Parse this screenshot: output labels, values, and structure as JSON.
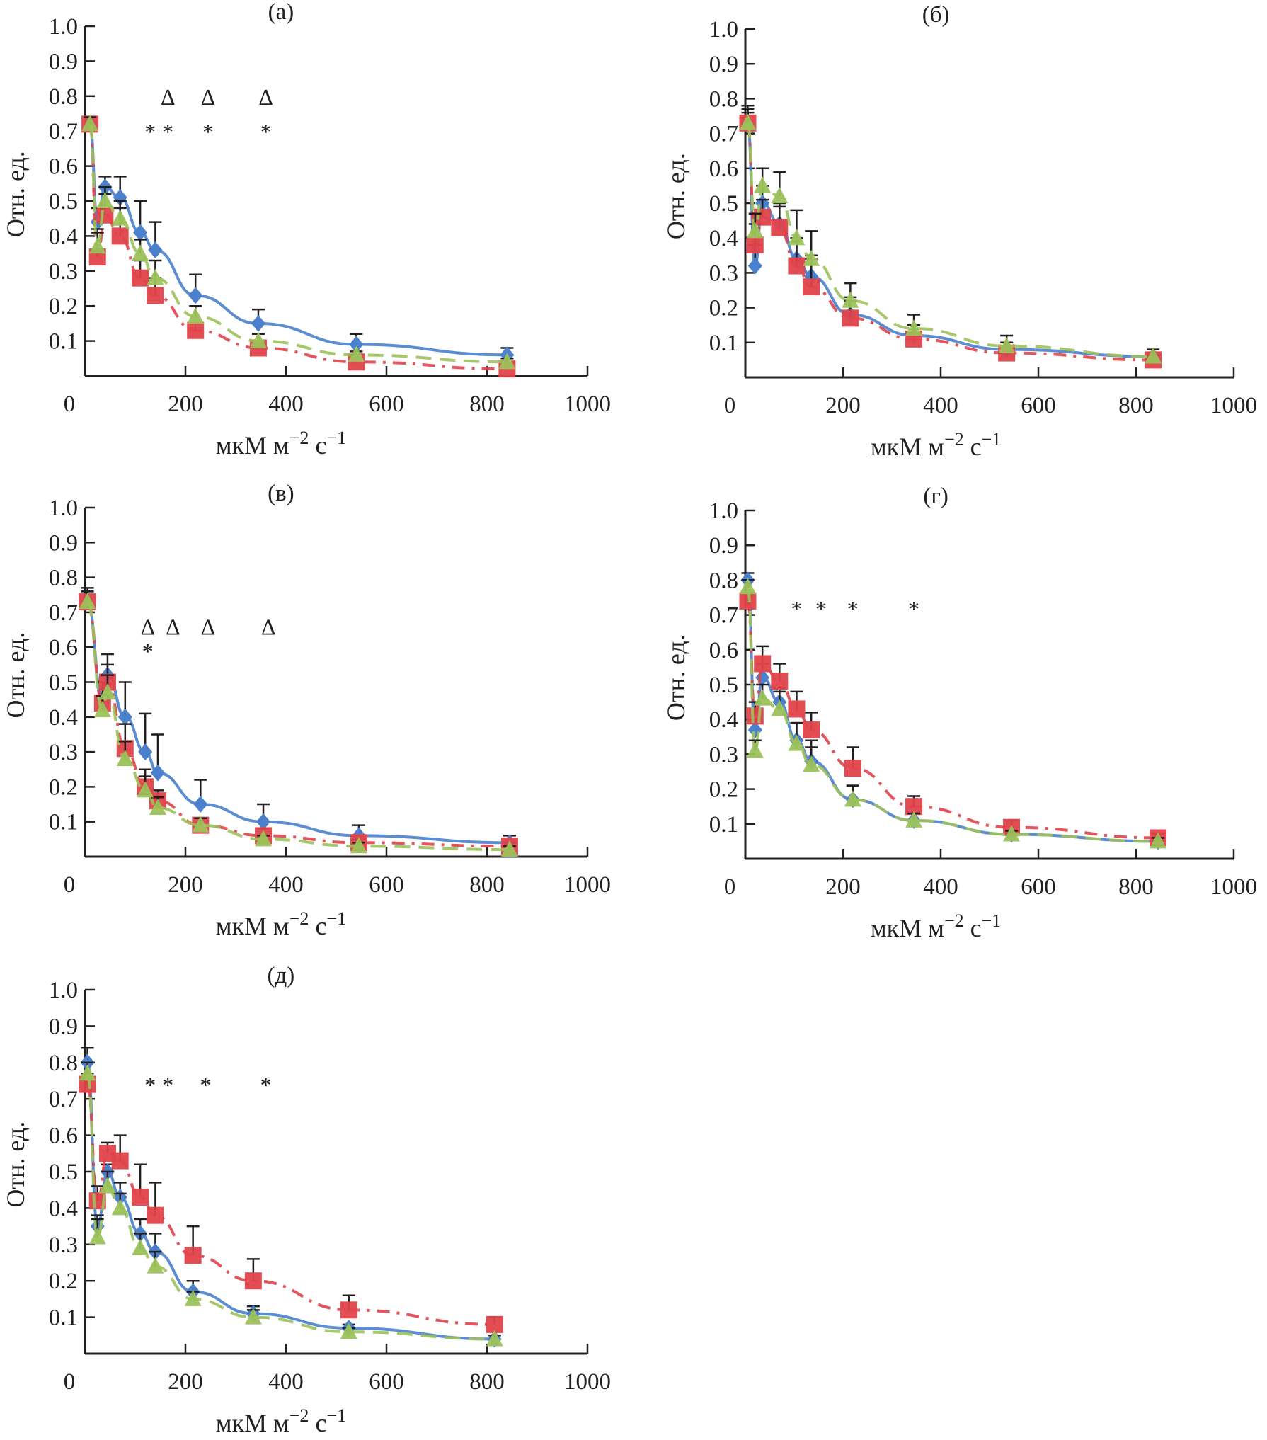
{
  "figure": {
    "colors": {
      "blue": "#4a80cc",
      "red": "#e0434b",
      "green": "#9cc25a",
      "axis": "#231f20"
    },
    "legend_note": "No legend shown"
  },
  "chart_data": [
    {
      "type": "line",
      "panel": "(а)",
      "title": "(а)",
      "xlabel": "мкМ м⁻² с⁻¹",
      "xlabel_parts": {
        "main": "мкМ м",
        "sup1": "−2",
        "mid": " с",
        "sup2": "−1"
      },
      "ylabel": "Отн. ед.",
      "xlim": [
        0,
        1000
      ],
      "ylim": [
        0,
        1.0
      ],
      "xticks": [
        "0",
        "200",
        "400",
        "600",
        "800",
        "1000"
      ],
      "yticks": [
        "0.1",
        "0.2",
        "0.3",
        "0.4",
        "0.5",
        "0.6",
        "0.7",
        "0.8",
        "0.9",
        "1.0"
      ],
      "x": [
        10,
        25,
        40,
        70,
        110,
        140,
        220,
        345,
        540,
        840
      ],
      "series": [
        {
          "name": "blue",
          "marker": "diamond",
          "line": "solid",
          "values": [
            0.72,
            0.44,
            0.54,
            0.51,
            0.41,
            0.36,
            0.23,
            0.15,
            0.09,
            0.06
          ],
          "err": [
            0.02,
            0.04,
            0.03,
            0.06,
            0.09,
            0.08,
            0.06,
            0.04,
            0.03,
            0.02
          ]
        },
        {
          "name": "red",
          "marker": "square",
          "line": "dashdot",
          "values": [
            0.72,
            0.34,
            0.46,
            0.4,
            0.28,
            0.23,
            0.13,
            0.08,
            0.04,
            0.02
          ],
          "err": [
            0.02,
            0.08,
            0.06,
            0.08,
            0.05,
            0.05,
            0.02,
            0.01,
            0.01,
            0.01
          ]
        },
        {
          "name": "green",
          "marker": "triangle",
          "line": "dashed",
          "values": [
            0.72,
            0.37,
            0.5,
            0.45,
            0.35,
            0.28,
            0.17,
            0.1,
            0.06,
            0.04
          ],
          "err": [
            0.02,
            0.04,
            0.04,
            0.05,
            0.04,
            0.05,
            0.03,
            0.02,
            0.01,
            0.01
          ]
        }
      ],
      "annotations": [
        {
          "text": "∆",
          "x": 165,
          "y": 0.8
        },
        {
          "text": "∆",
          "x": 245,
          "y": 0.8
        },
        {
          "text": "∆",
          "x": 360,
          "y": 0.8
        },
        {
          "text": "*",
          "x": 130,
          "y": 0.7
        },
        {
          "text": "*",
          "x": 165,
          "y": 0.7
        },
        {
          "text": "*",
          "x": 245,
          "y": 0.7
        },
        {
          "text": "*",
          "x": 360,
          "y": 0.7
        }
      ]
    },
    {
      "type": "line",
      "panel": "(б)",
      "title": "(б)",
      "xlabel": "мкМ м⁻² с⁻¹",
      "xlabel_parts": {
        "main": "мкМ м",
        "sup1": "−2",
        "mid": " с",
        "sup2": "−1"
      },
      "ylabel": "Отн. ед.",
      "xlim": [
        0,
        1000
      ],
      "ylim": [
        0,
        1.0
      ],
      "xticks": [
        "0",
        "200",
        "400",
        "600",
        "800",
        "1000"
      ],
      "yticks": [
        "0.1",
        "0.2",
        "0.3",
        "0.4",
        "0.5",
        "0.6",
        "0.7",
        "0.8",
        "0.9",
        "1.0"
      ],
      "x": [
        5,
        20,
        35,
        70,
        105,
        135,
        215,
        345,
        535,
        835
      ],
      "series": [
        {
          "name": "blue",
          "marker": "diamond",
          "line": "solid",
          "values": [
            0.73,
            0.32,
            0.5,
            0.44,
            0.34,
            0.29,
            0.18,
            0.12,
            0.08,
            0.06
          ],
          "err": [
            0.05,
            0.06,
            0.05,
            0.05,
            0.05,
            0.06,
            0.04,
            0.03,
            0.02,
            0.01
          ]
        },
        {
          "name": "red",
          "marker": "square",
          "line": "dashdot",
          "values": [
            0.73,
            0.38,
            0.46,
            0.43,
            0.32,
            0.26,
            0.17,
            0.11,
            0.07,
            0.05
          ],
          "err": [
            0.03,
            0.06,
            0.05,
            0.07,
            0.08,
            0.08,
            0.06,
            0.04,
            0.02,
            0.01
          ]
        },
        {
          "name": "green",
          "marker": "triangle",
          "line": "dashed",
          "values": [
            0.73,
            0.42,
            0.55,
            0.52,
            0.4,
            0.34,
            0.22,
            0.14,
            0.09,
            0.06
          ],
          "err": [
            0.04,
            0.05,
            0.05,
            0.07,
            0.08,
            0.08,
            0.05,
            0.04,
            0.03,
            0.02
          ]
        }
      ],
      "annotations": []
    },
    {
      "type": "line",
      "panel": "(в)",
      "title": "(в)",
      "xlabel": "мкМ м⁻² с⁻¹",
      "xlabel_parts": {
        "main": "мкМ м",
        "sup1": "−2",
        "mid": " с",
        "sup2": "−1"
      },
      "ylabel": "Отн. ед.",
      "xlim": [
        0,
        1000
      ],
      "ylim": [
        0,
        1.0
      ],
      "xticks": [
        "0",
        "200",
        "400",
        "600",
        "800",
        "1000"
      ],
      "yticks": [
        "0.1",
        "0.2",
        "0.3",
        "0.4",
        "0.5",
        "0.6",
        "0.7",
        "0.8",
        "0.9",
        "1.0"
      ],
      "x": [
        5,
        35,
        45,
        80,
        120,
        145,
        230,
        355,
        545,
        845
      ],
      "series": [
        {
          "name": "blue",
          "marker": "diamond",
          "line": "solid",
          "values": [
            0.73,
            0.45,
            0.52,
            0.4,
            0.3,
            0.24,
            0.15,
            0.1,
            0.06,
            0.04
          ],
          "err": [
            0.04,
            0.05,
            0.06,
            0.1,
            0.11,
            0.11,
            0.07,
            0.05,
            0.03,
            0.02
          ]
        },
        {
          "name": "red",
          "marker": "square",
          "line": "dashdot",
          "values": [
            0.73,
            0.44,
            0.5,
            0.31,
            0.2,
            0.16,
            0.09,
            0.06,
            0.04,
            0.03
          ],
          "err": [
            0.03,
            0.06,
            0.05,
            0.07,
            0.05,
            0.03,
            0.02,
            0.02,
            0.01,
            0.01
          ]
        },
        {
          "name": "green",
          "marker": "triangle",
          "line": "dashed",
          "values": [
            0.73,
            0.42,
            0.47,
            0.28,
            0.19,
            0.14,
            0.09,
            0.05,
            0.03,
            0.02
          ],
          "err": [
            0.03,
            0.04,
            0.05,
            0.05,
            0.04,
            0.03,
            0.02,
            0.01,
            0.01,
            0.01
          ]
        }
      ],
      "annotations": [
        {
          "text": "∆",
          "x": 125,
          "y": 0.66
        },
        {
          "text": "∆",
          "x": 175,
          "y": 0.66
        },
        {
          "text": "∆",
          "x": 245,
          "y": 0.66
        },
        {
          "text": "∆",
          "x": 365,
          "y": 0.66
        },
        {
          "text": "*",
          "x": 125,
          "y": 0.59
        }
      ]
    },
    {
      "type": "line",
      "panel": "(г)",
      "title": "(г)",
      "xlabel": "мкМ м⁻² с⁻¹",
      "xlabel_parts": {
        "main": "мкМ м",
        "sup1": "−2",
        "mid": " с",
        "sup2": "−1"
      },
      "ylabel": "Отн. ед.",
      "xlim": [
        0,
        1000
      ],
      "ylim": [
        0,
        1.0
      ],
      "xticks": [
        "0",
        "200",
        "400",
        "600",
        "800",
        "1000"
      ],
      "yticks": [
        "0.1",
        "0.2",
        "0.3",
        "0.4",
        "0.5",
        "0.6",
        "0.7",
        "0.8",
        "0.9",
        "1.0"
      ],
      "x": [
        5,
        20,
        35,
        70,
        105,
        135,
        220,
        345,
        545,
        845
      ],
      "series": [
        {
          "name": "blue",
          "marker": "diamond",
          "line": "solid",
          "values": [
            0.8,
            0.37,
            0.52,
            0.45,
            0.34,
            0.28,
            0.17,
            0.11,
            0.07,
            0.05
          ],
          "err": [
            0.02,
            0.03,
            0.04,
            0.04,
            0.05,
            0.06,
            0.04,
            0.02,
            0.01,
            0.01
          ]
        },
        {
          "name": "red",
          "marker": "square",
          "line": "dashdot",
          "values": [
            0.74,
            0.41,
            0.56,
            0.51,
            0.43,
            0.37,
            0.26,
            0.15,
            0.09,
            0.06
          ],
          "err": [
            0.02,
            0.04,
            0.05,
            0.05,
            0.05,
            0.05,
            0.06,
            0.03,
            0.02,
            0.01
          ]
        },
        {
          "name": "green",
          "marker": "triangle",
          "line": "dashed",
          "values": [
            0.78,
            0.31,
            0.46,
            0.43,
            0.33,
            0.27,
            0.17,
            0.11,
            0.07,
            0.05
          ],
          "err": [
            0.02,
            0.03,
            0.04,
            0.05,
            0.06,
            0.05,
            0.04,
            0.02,
            0.01,
            0.01
          ]
        }
      ],
      "annotations": [
        {
          "text": "*",
          "x": 105,
          "y": 0.72
        },
        {
          "text": "*",
          "x": 155,
          "y": 0.72
        },
        {
          "text": "*",
          "x": 220,
          "y": 0.72
        },
        {
          "text": "*",
          "x": 345,
          "y": 0.72
        }
      ]
    },
    {
      "type": "line",
      "panel": "(д)",
      "title": "(д)",
      "xlabel": "мкМ м⁻² с⁻¹",
      "xlabel_parts": {
        "main": "мкМ м",
        "sup1": "−2",
        "mid": " с",
        "sup2": "−1"
      },
      "ylabel": "Отн. ед.",
      "xlim": [
        0,
        1000
      ],
      "ylim": [
        0,
        1.0
      ],
      "xticks": [
        "0",
        "200",
        "400",
        "600",
        "800",
        "1000"
      ],
      "yticks": [
        "0.1",
        "0.2",
        "0.3",
        "0.4",
        "0.5",
        "0.6",
        "0.7",
        "0.8",
        "0.9",
        "1.0"
      ],
      "x": [
        5,
        25,
        45,
        70,
        110,
        140,
        215,
        335,
        525,
        815
      ],
      "series": [
        {
          "name": "blue",
          "marker": "diamond",
          "line": "solid",
          "values": [
            0.8,
            0.35,
            0.5,
            0.43,
            0.33,
            0.28,
            0.17,
            0.11,
            0.07,
            0.04
          ],
          "err": [
            0.04,
            0.03,
            0.02,
            0.04,
            0.04,
            0.05,
            0.03,
            0.02,
            0.01,
            0.01
          ]
        },
        {
          "name": "red",
          "marker": "square",
          "line": "dashdot",
          "values": [
            0.74,
            0.42,
            0.55,
            0.53,
            0.43,
            0.38,
            0.27,
            0.2,
            0.12,
            0.08
          ],
          "err": [
            0.03,
            0.04,
            0.03,
            0.07,
            0.09,
            0.09,
            0.08,
            0.06,
            0.04,
            0.02
          ]
        },
        {
          "name": "green",
          "marker": "triangle",
          "line": "dashed",
          "values": [
            0.77,
            0.32,
            0.46,
            0.4,
            0.29,
            0.24,
            0.15,
            0.1,
            0.06,
            0.04
          ],
          "err": [
            0.03,
            0.05,
            0.04,
            0.04,
            0.04,
            0.04,
            0.02,
            0.02,
            0.01,
            0.01
          ]
        }
      ],
      "annotations": [
        {
          "text": "*",
          "x": 130,
          "y": 0.74
        },
        {
          "text": "*",
          "x": 165,
          "y": 0.74
        },
        {
          "text": "*",
          "x": 240,
          "y": 0.74
        },
        {
          "text": "*",
          "x": 360,
          "y": 0.74
        }
      ]
    }
  ]
}
